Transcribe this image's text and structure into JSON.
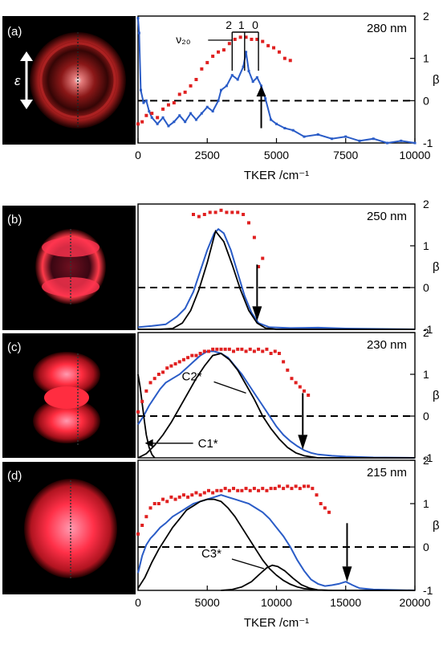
{
  "chart_data": [
    {
      "panel": "(a)",
      "type": "line",
      "wavelength": "280 nm",
      "xlabel": "TKER /cm⁻¹",
      "ylabel_right": "β",
      "xlim": [
        0,
        10000
      ],
      "ylim": [
        -1,
        2
      ],
      "x_ticks": [
        0,
        2500,
        5000,
        7500,
        10000
      ],
      "y_ticks": [
        -1,
        0,
        1,
        2
      ],
      "image_label": "ε",
      "vib_label": "ν₂₀",
      "vib_comb": [
        {
          "label": "2",
          "x": 3400
        },
        {
          "label": "1",
          "x": 3850
        },
        {
          "label": "0",
          "x": 4350
        }
      ],
      "arrow_x": 4450,
      "series": [
        {
          "kind": "tker",
          "color": "#2a5cc7",
          "x": [
            0,
            40,
            100,
            200,
            300,
            400,
            500,
            700,
            900,
            1100,
            1300,
            1500,
            1700,
            1900,
            2100,
            2300,
            2500,
            2700,
            2900,
            3000,
            3200,
            3400,
            3600,
            3800,
            3900,
            4000,
            4150,
            4300,
            4450,
            4600,
            4800,
            5000,
            5300,
            5600,
            6000,
            6500,
            7000,
            7500,
            8000,
            8500,
            9000,
            9500,
            10000
          ],
          "y": [
            1.95,
            1.6,
            0.25,
            -0.05,
            0.0,
            -0.25,
            -0.4,
            -0.55,
            -0.4,
            -0.6,
            -0.5,
            -0.35,
            -0.5,
            -0.3,
            -0.45,
            -0.3,
            -0.15,
            -0.25,
            0.0,
            0.25,
            0.35,
            0.6,
            0.5,
            0.8,
            1.15,
            0.7,
            0.45,
            0.55,
            0.35,
            0.05,
            -0.45,
            -0.55,
            -0.65,
            -0.7,
            -0.85,
            -0.8,
            -0.9,
            -0.85,
            -0.95,
            -0.9,
            -1.0,
            -0.95,
            -1.0
          ]
        },
        {
          "kind": "beta",
          "color": "#e02020",
          "x": [
            0,
            150,
            300,
            500,
            700,
            900,
            1100,
            1300,
            1500,
            1700,
            1900,
            2100,
            2300,
            2500,
            2700,
            2900,
            3100,
            3300,
            3500,
            3700,
            3900,
            4100,
            4300,
            4500,
            4700,
            4900,
            5100,
            5300,
            5500
          ],
          "y": [
            -0.55,
            -0.5,
            -0.35,
            -0.3,
            -0.4,
            -0.2,
            -0.1,
            -0.05,
            0.15,
            0.2,
            0.35,
            0.5,
            0.75,
            0.9,
            1.05,
            1.15,
            1.2,
            1.35,
            1.45,
            1.5,
            1.5,
            1.45,
            1.45,
            1.4,
            1.3,
            1.25,
            1.15,
            1.0,
            0.95
          ]
        }
      ]
    },
    {
      "panel": "(b)",
      "type": "line",
      "wavelength": "250 nm",
      "ylabel_right": "β",
      "xlim": [
        0,
        20000
      ],
      "ylim": [
        -1,
        2
      ],
      "y_ticks": [
        -1,
        0,
        1,
        2
      ],
      "arrow_x": 8600,
      "series": [
        {
          "kind": "tker",
          "color": "#2a5cc7",
          "x": [
            0,
            1000,
            2000,
            2800,
            3400,
            4000,
            4500,
            5000,
            5500,
            5800,
            6200,
            6700,
            7200,
            7700,
            8200,
            8700,
            9500,
            11000,
            13000,
            15000,
            20000
          ],
          "y": [
            -0.95,
            -0.92,
            -0.88,
            -0.7,
            -0.5,
            -0.1,
            0.4,
            0.9,
            1.3,
            1.4,
            1.3,
            0.9,
            0.35,
            -0.2,
            -0.6,
            -0.85,
            -0.95,
            -0.97,
            -0.96,
            -0.98,
            -1.0
          ]
        },
        {
          "kind": "fit",
          "color": "#000000",
          "x": [
            0,
            1500,
            2500,
            3200,
            3800,
            4400,
            5000,
            5600,
            6200,
            6800,
            7400,
            8000,
            8600,
            9200,
            10000,
            20000
          ],
          "y": [
            -1.0,
            -1.0,
            -0.98,
            -0.85,
            -0.55,
            -0.05,
            0.6,
            1.35,
            1.1,
            0.55,
            -0.05,
            -0.55,
            -0.85,
            -0.97,
            -1.0,
            -1.0
          ]
        },
        {
          "kind": "beta",
          "color": "#e02020",
          "x": [
            4000,
            4400,
            4800,
            5200,
            5600,
            6000,
            6400,
            6800,
            7200,
            7600,
            8000,
            8400,
            8700,
            9000
          ],
          "y": [
            1.75,
            1.7,
            1.75,
            1.8,
            1.8,
            1.85,
            1.8,
            1.8,
            1.8,
            1.75,
            1.55,
            1.2,
            0.5,
            0.7
          ]
        }
      ]
    },
    {
      "panel": "(c)",
      "type": "line",
      "wavelength": "230 nm",
      "ylabel_right": "β",
      "xlim": [
        0,
        20000
      ],
      "ylim": [
        -1,
        2
      ],
      "y_ticks": [
        -1,
        0,
        1,
        2
      ],
      "arrow_x": 11900,
      "annotations": [
        {
          "text": "C2*",
          "at_x": 7800
        },
        {
          "text": "C1*",
          "at_x": 500
        }
      ],
      "series": [
        {
          "kind": "tker",
          "color": "#2a5cc7",
          "x": [
            0,
            400,
            800,
            1200,
            1600,
            2000,
            2500,
            3000,
            3500,
            4000,
            4500,
            5000,
            5500,
            6000,
            6500,
            7000,
            7500,
            8000,
            8500,
            9000,
            9500,
            10000,
            10500,
            11000,
            11500,
            12000,
            12500,
            13000,
            14000,
            15000,
            17000,
            20000
          ],
          "y": [
            -0.2,
            0.0,
            0.25,
            0.45,
            0.65,
            0.8,
            0.9,
            1.0,
            1.15,
            1.3,
            1.45,
            1.55,
            1.55,
            1.5,
            1.4,
            1.2,
            1.0,
            0.75,
            0.5,
            0.25,
            0.0,
            -0.25,
            -0.45,
            -0.6,
            -0.72,
            -0.82,
            -0.88,
            -0.92,
            -0.95,
            -0.97,
            -0.99,
            -1.0
          ]
        },
        {
          "kind": "fit",
          "color": "#000000",
          "x": [
            0,
            600,
            1200,
            1800,
            2400,
            3000,
            3600,
            4200,
            4800,
            5400,
            6000,
            6600,
            7200,
            7800,
            8400,
            9000,
            9600,
            10200,
            10800,
            11400,
            12000,
            13000,
            20000
          ],
          "y": [
            -1.0,
            -0.9,
            -0.7,
            -0.45,
            -0.15,
            0.2,
            0.55,
            0.9,
            1.2,
            1.45,
            1.5,
            1.35,
            1.1,
            0.75,
            0.4,
            0.0,
            -0.3,
            -0.55,
            -0.75,
            -0.88,
            -0.95,
            -1.0,
            -1.0
          ]
        },
        {
          "kind": "fit",
          "color": "#000000",
          "x": [
            0,
            150,
            300,
            450,
            600,
            800,
            1000,
            1200
          ],
          "y": [
            1.0,
            0.7,
            0.3,
            -0.1,
            -0.45,
            -0.75,
            -0.92,
            -1.0
          ]
        },
        {
          "kind": "beta",
          "color": "#e02020",
          "x": [
            0,
            300,
            600,
            900,
            1200,
            1500,
            1800,
            2100,
            2400,
            2700,
            3000,
            3300,
            3600,
            3900,
            4200,
            4500,
            4800,
            5100,
            5400,
            5700,
            6000,
            6300,
            6600,
            6900,
            7200,
            7500,
            7800,
            8100,
            8400,
            8700,
            9000,
            9300,
            9600,
            9900,
            10200,
            10500,
            10800,
            11100,
            11400,
            11700,
            12000,
            12300
          ],
          "y": [
            0.1,
            0.35,
            0.6,
            0.8,
            0.9,
            1.0,
            1.05,
            1.15,
            1.2,
            1.25,
            1.3,
            1.35,
            1.4,
            1.45,
            1.45,
            1.5,
            1.55,
            1.55,
            1.6,
            1.6,
            1.6,
            1.6,
            1.6,
            1.55,
            1.6,
            1.6,
            1.55,
            1.6,
            1.55,
            1.6,
            1.55,
            1.6,
            1.5,
            1.55,
            1.5,
            1.3,
            1.1,
            0.9,
            0.8,
            0.7,
            0.6,
            0.5
          ]
        }
      ]
    },
    {
      "panel": "(d)",
      "type": "line",
      "wavelength": "215 nm",
      "xlabel": "TKER /cm⁻¹",
      "ylabel_right": "β",
      "xlim": [
        0,
        20000
      ],
      "ylim": [
        -1,
        2
      ],
      "x_ticks": [
        0,
        5000,
        10000,
        15000,
        20000
      ],
      "y_ticks": [
        -1,
        0,
        1,
        2
      ],
      "arrow_x": 15100,
      "annotations": [
        {
          "text": "C3*",
          "at_x": 9100
        }
      ],
      "series": [
        {
          "kind": "tker",
          "color": "#2a5cc7",
          "x": [
            0,
            300,
            600,
            900,
            1200,
            1600,
            2000,
            2500,
            3000,
            3500,
            4000,
            4500,
            5000,
            5500,
            6000,
            6500,
            7000,
            7500,
            8000,
            8500,
            9000,
            9500,
            10000,
            10500,
            11000,
            11500,
            12000,
            12500,
            13000,
            13500,
            14000,
            14500,
            15000,
            15500,
            16000,
            17000,
            20000
          ],
          "y": [
            -0.6,
            -0.2,
            0.05,
            0.2,
            0.3,
            0.45,
            0.55,
            0.7,
            0.8,
            0.9,
            1.0,
            1.05,
            1.1,
            1.15,
            1.2,
            1.15,
            1.1,
            1.05,
            1.0,
            0.9,
            0.8,
            0.65,
            0.45,
            0.25,
            0.0,
            -0.3,
            -0.55,
            -0.75,
            -0.85,
            -0.9,
            -0.88,
            -0.85,
            -0.8,
            -0.88,
            -0.95,
            -0.98,
            -1.0
          ]
        },
        {
          "kind": "fit",
          "color": "#000000",
          "x": [
            0,
            500,
            1000,
            1500,
            2000,
            2500,
            3000,
            3500,
            4000,
            4500,
            5000,
            5500,
            6000,
            6500,
            7000,
            7500,
            8000,
            8500,
            9000,
            9500,
            10000,
            10500,
            11000,
            11500,
            12000,
            13000,
            14000,
            20000
          ],
          "y": [
            -0.95,
            -0.7,
            -0.35,
            -0.05,
            0.2,
            0.45,
            0.65,
            0.85,
            0.95,
            1.05,
            1.1,
            1.1,
            1.05,
            0.9,
            0.7,
            0.45,
            0.2,
            -0.05,
            -0.3,
            -0.5,
            -0.65,
            -0.77,
            -0.86,
            -0.92,
            -0.96,
            -0.99,
            -1.0,
            -1.0
          ]
        },
        {
          "kind": "fit",
          "color": "#000000",
          "x": [
            6000,
            6800,
            7500,
            8200,
            8800,
            9300,
            9700,
            10100,
            10600,
            11200,
            11800,
            12400,
            13000,
            14000
          ],
          "y": [
            -1.0,
            -0.98,
            -0.92,
            -0.8,
            -0.62,
            -0.48,
            -0.42,
            -0.45,
            -0.55,
            -0.72,
            -0.87,
            -0.95,
            -0.99,
            -1.0
          ]
        },
        {
          "kind": "beta",
          "color": "#e02020",
          "x": [
            0,
            300,
            600,
            900,
            1200,
            1500,
            1800,
            2100,
            2400,
            2700,
            3000,
            3300,
            3600,
            3900,
            4200,
            4500,
            4800,
            5100,
            5400,
            5700,
            6000,
            6300,
            6600,
            6900,
            7200,
            7500,
            7800,
            8100,
            8400,
            8700,
            9000,
            9300,
            9600,
            9900,
            10200,
            10500,
            10800,
            11100,
            11400,
            11700,
            12000,
            12300,
            12600,
            12900,
            13200,
            13500,
            13800
          ],
          "y": [
            0.3,
            0.5,
            0.7,
            0.9,
            1.0,
            1.0,
            1.1,
            1.05,
            1.15,
            1.1,
            1.15,
            1.2,
            1.15,
            1.2,
            1.25,
            1.2,
            1.25,
            1.3,
            1.25,
            1.3,
            1.3,
            1.35,
            1.3,
            1.35,
            1.3,
            1.3,
            1.35,
            1.3,
            1.35,
            1.3,
            1.35,
            1.3,
            1.35,
            1.35,
            1.4,
            1.35,
            1.4,
            1.35,
            1.4,
            1.35,
            1.4,
            1.4,
            1.35,
            1.2,
            1.0,
            0.9,
            0.8
          ]
        }
      ]
    }
  ]
}
